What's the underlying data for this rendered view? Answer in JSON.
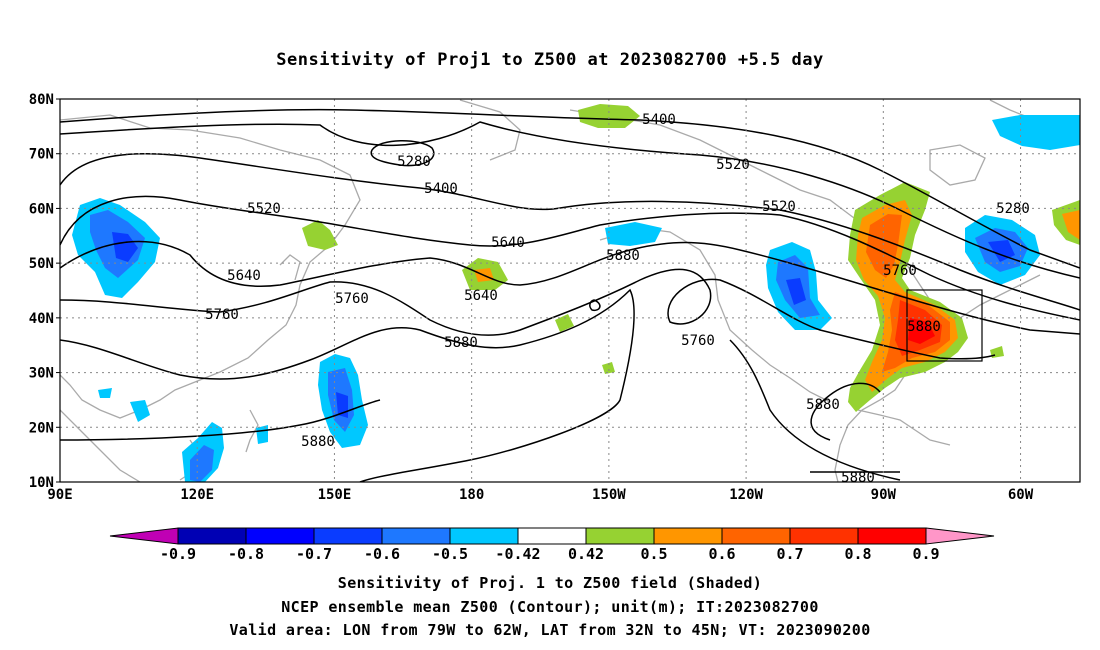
{
  "title": "Sensitivity of Proj1 to Z500 at 2023082700 +5.5 day",
  "lat_labels": [
    "80N",
    "70N",
    "60N",
    "50N",
    "40N",
    "30N",
    "20N",
    "10N"
  ],
  "lon_labels": [
    "90E",
    "120E",
    "150E",
    "180",
    "150W",
    "120W",
    "90W",
    "60W"
  ],
  "contour_labels": [
    "5400",
    "5280",
    "5400",
    "5520",
    "5520",
    "5640",
    "5280",
    "5520",
    "5640",
    "5880",
    "5640",
    "5760",
    "5760",
    "5880",
    "5760",
    "5760",
    "5880",
    "5880",
    "5880",
    "5880"
  ],
  "colorbar": {
    "labels": [
      "-0.9",
      "-0.8",
      "-0.7",
      "-0.6",
      "-0.5",
      "-0.42",
      "0.42",
      "0.5",
      "0.6",
      "0.7",
      "0.8",
      "0.9"
    ],
    "colors": [
      "#c000b4",
      "#0000b4",
      "#0000ff",
      "#0a3cff",
      "#1e78ff",
      "#00c8ff",
      "#ffffff",
      "#96d232",
      "#ff9600",
      "#ff6400",
      "#ff3200",
      "#ff0000",
      "#ff96c8"
    ]
  },
  "caption": {
    "line1": "Sensitivity of Proj. 1 to Z500 field (Shaded)",
    "line2": "NCEP ensemble mean Z500 (Contour); unit(m); IT:2023082700",
    "line3": "Valid area: LON from 79W to 62W, LAT from 32N to 45N; VT: 2023090200"
  },
  "valid_area": {
    "lon": [
      -79,
      -62
    ],
    "lat": [
      32,
      45
    ]
  }
}
